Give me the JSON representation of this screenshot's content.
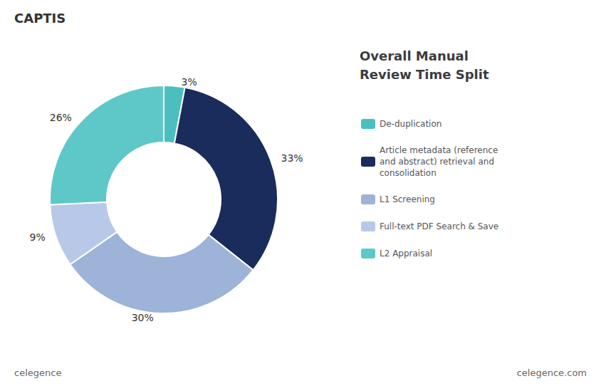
{
  "chart_data": {
    "type": "pie",
    "title": "Overall Manual\nReview Time Split",
    "categories": [
      "De-duplication",
      "Article metadata (reference\nand abstract) retrieval and\nconsolidation",
      "L1 Screening",
      "Full-text PDF Search & Save",
      "L2 Appraisal"
    ],
    "values": [
      3,
      33,
      30,
      9,
      26
    ],
    "value_labels": [
      "3%",
      "33%",
      "30%",
      "9%",
      "26%"
    ],
    "colors": [
      "#4bbfbf",
      "#1a2c5b",
      "#9db3d8",
      "#b8c8e8",
      "#5ec8c8"
    ],
    "data_labels": true,
    "legend": "right",
    "annotations": [
      "CAPTIS",
      "celegence",
      "celegence.com"
    ]
  }
}
